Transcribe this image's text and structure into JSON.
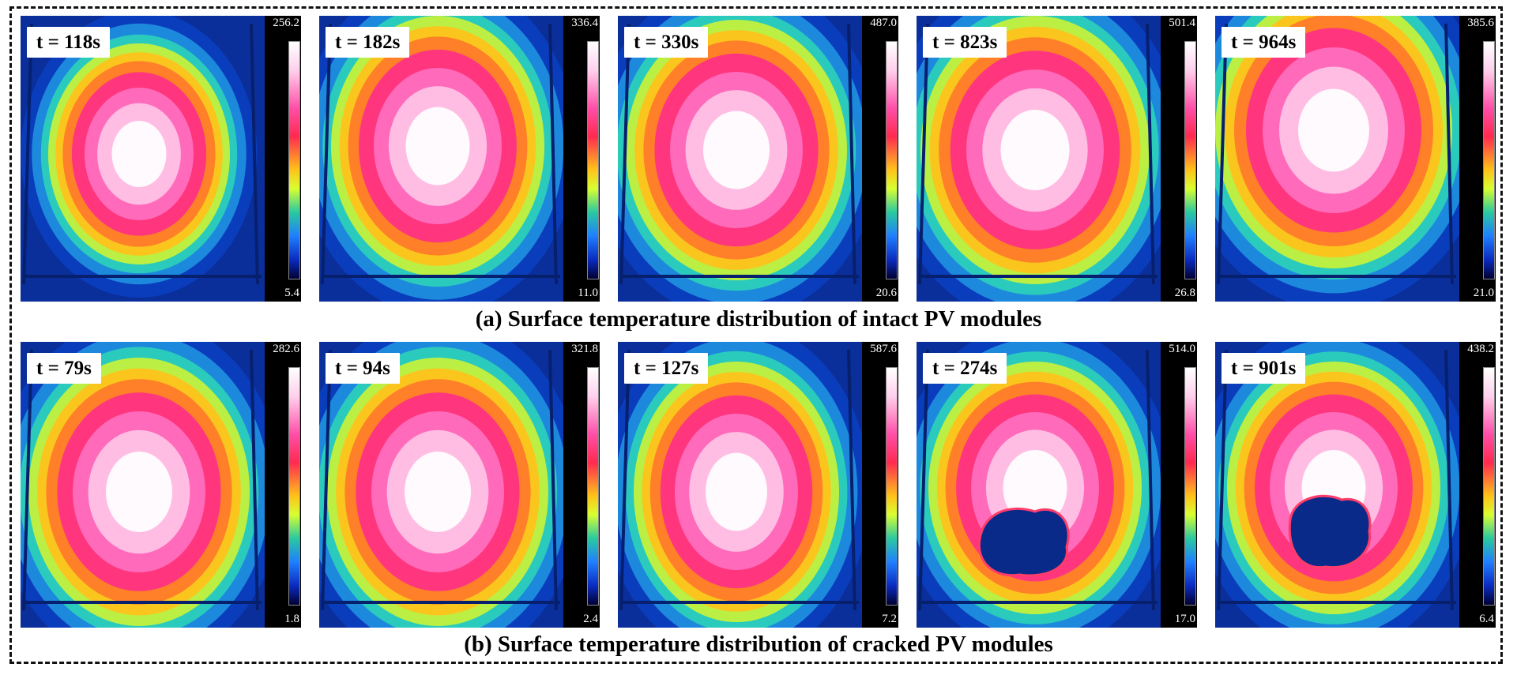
{
  "colors": {
    "background": "#ffffff",
    "border": "#111111",
    "thermal_cold": "#0a2f9a",
    "thermal_hot": "#ffffff"
  },
  "rows": [
    {
      "caption": "(a) Surface temperature distribution of intact PV modules",
      "panels": [
        {
          "time": "t = 118s",
          "max": "256.2",
          "min": "5.4",
          "crack": false
        },
        {
          "time": "t = 182s",
          "max": "336.4",
          "min": "11.0",
          "crack": false
        },
        {
          "time": "t = 330s",
          "max": "487.0",
          "min": "20.6",
          "crack": false
        },
        {
          "time": "t = 823s",
          "max": "501.4",
          "min": "26.8",
          "crack": false
        },
        {
          "time": "t = 964s",
          "max": "385.6",
          "min": "21.0",
          "crack": false
        }
      ]
    },
    {
      "caption": "(b) Surface temperature distribution of cracked PV modules",
      "panels": [
        {
          "time": "t = 79s",
          "max": "282.6",
          "min": "1.8",
          "crack": false
        },
        {
          "time": "t = 94s",
          "max": "321.8",
          "min": "2.4",
          "crack": false
        },
        {
          "time": "t = 127s",
          "max": "587.6",
          "min": "7.2",
          "crack": false
        },
        {
          "time": "t = 274s",
          "max": "514.0",
          "min": "17.0",
          "crack": true
        },
        {
          "time": "t = 901s",
          "max": "438.2",
          "min": "6.4",
          "crack": true
        }
      ]
    }
  ]
}
